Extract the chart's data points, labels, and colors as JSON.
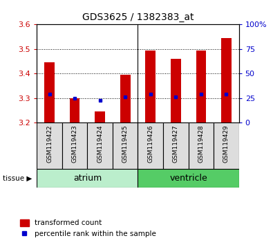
{
  "title": "GDS3625 / 1382383_at",
  "samples": [
    "GSM119422",
    "GSM119423",
    "GSM119424",
    "GSM119425",
    "GSM119426",
    "GSM119427",
    "GSM119428",
    "GSM119429"
  ],
  "red_top": [
    3.445,
    3.3,
    3.245,
    3.395,
    3.495,
    3.46,
    3.495,
    3.545
  ],
  "red_bottom": [
    3.2,
    3.2,
    3.2,
    3.2,
    3.2,
    3.2,
    3.2,
    3.2
  ],
  "blue_y": [
    3.315,
    3.3,
    3.29,
    3.305,
    3.315,
    3.305,
    3.315,
    3.315
  ],
  "ylim_left": [
    3.2,
    3.6
  ],
  "yticks_left": [
    3.2,
    3.3,
    3.4,
    3.5,
    3.6
  ],
  "ylim_right": [
    0,
    100
  ],
  "yticks_right": [
    0,
    25,
    50,
    75,
    100
  ],
  "yticklabels_right": [
    "0",
    "25",
    "50",
    "75",
    "100%"
  ],
  "bar_color": "#cc0000",
  "blue_color": "#0000cc",
  "left_tick_color": "#cc0000",
  "right_tick_color": "#0000cc",
  "bar_width": 0.4,
  "atrium_color": "#bbeecc",
  "ventricle_color": "#55cc66",
  "sample_box_color": "#dddddd"
}
